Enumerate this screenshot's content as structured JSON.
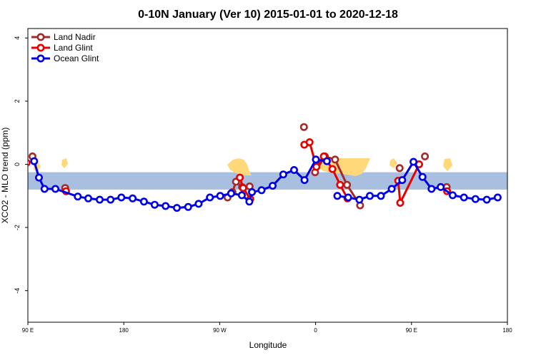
{
  "colors": {
    "land_nadir": "#a52a2a",
    "land_glint": "#e60000",
    "ocean_glint": "#0000e6",
    "band": "#a9bfe0",
    "land_fill": "#ffd87a"
  },
  "chart_data": {
    "type": "line",
    "title": "0-10N January (Ver 10)   2015-01-01 to 2020-12-18",
    "xlabel": "Longitude",
    "ylabel": "XCO2 - MLO trend (ppm)",
    "xlim": [
      90,
      540
    ],
    "ylim": [
      -5,
      4.3
    ],
    "x_ticks": [
      {
        "value": 90,
        "label": "90 E"
      },
      {
        "value": 180,
        "label": "180"
      },
      {
        "value": 270,
        "label": "90 W"
      },
      {
        "value": 360,
        "label": "0"
      },
      {
        "value": 450,
        "label": "90 E"
      },
      {
        "value": 540,
        "label": "180"
      }
    ],
    "y_ticks": [
      -4,
      -2,
      0,
      2,
      4
    ],
    "band": {
      "y_min": -0.8,
      "y_max": -0.25
    },
    "legend": {
      "position": "top-left",
      "entries": [
        "Land Nadir",
        "Land Glint",
        "Ocean Glint"
      ]
    },
    "series": [
      {
        "name": "Land Nadir",
        "segments": [
          [
            [
              94.3,
              0.25
            ]
          ],
          [
            [
              125,
              -0.75
            ]
          ],
          [
            [
              277.4,
              -1.05
            ],
            [
              282,
              -0.88
            ],
            [
              285.3,
              -0.55
            ],
            [
              291,
              -0.72
            ],
            [
              298.1,
              -0.7
            ]
          ],
          [
            [
              349.1,
              1.18
            ]
          ],
          [
            [
              359.5,
              -0.25
            ],
            [
              368.7,
              0.25
            ],
            [
              378.3,
              0.15
            ],
            [
              389.5,
              -0.65
            ],
            [
              401.8,
              -1.3
            ]
          ],
          [
            [
              438.9,
              -0.12
            ]
          ],
          [
            [
              462.6,
              0.25
            ]
          ],
          [
            [
              483,
              -0.72
            ]
          ]
        ]
      },
      {
        "name": "Land Glint",
        "segments": [
          [
            [
              88.8,
              0.05
            ]
          ],
          [
            [
              125.8,
              -0.85
            ]
          ],
          [
            [
              288.9,
              -0.42
            ],
            [
              292,
              -0.75
            ],
            [
              298.7,
              -1.1
            ]
          ],
          [
            [
              349.4,
              0.62
            ],
            [
              354.4,
              0.7
            ],
            [
              360.8,
              -0.08
            ],
            [
              367.7,
              0.25
            ],
            [
              375.8,
              -0.15
            ],
            [
              383,
              -0.65
            ],
            [
              389.9,
              -1.08
            ]
          ],
          [
            [
              437.5,
              -0.52
            ],
            [
              439.4,
              -1.22
            ],
            [
              457.2,
              0
            ]
          ],
          [
            [
              483.4,
              -0.85
            ]
          ]
        ]
      },
      {
        "name": "Ocean Glint",
        "segments": [
          [
            [
              95.9,
              0.1
            ],
            [
              100.4,
              -0.42
            ],
            [
              105.6,
              -0.78
            ],
            [
              115.8,
              -0.78
            ],
            [
              136.8,
              -1.02
            ],
            [
              146.7,
              -1.08
            ],
            [
              157.4,
              -1.12
            ],
            [
              167.6,
              -1.12
            ],
            [
              177.7,
              -1.05
            ],
            [
              188.3,
              -1.08
            ],
            [
              198.9,
              -1.18
            ],
            [
              209,
              -1.28
            ],
            [
              219.2,
              -1.32
            ],
            [
              229.8,
              -1.38
            ],
            [
              240.4,
              -1.35
            ],
            [
              250.2,
              -1.25
            ],
            [
              260.8,
              -1.05
            ],
            [
              270.5,
              -1.0
            ],
            [
              280.7,
              -0.92
            ],
            [
              290.8,
              -0.98
            ],
            [
              297.8,
              -1.18
            ],
            [
              300.3,
              -0.88
            ],
            [
              309.3,
              -0.82
            ],
            [
              319.7,
              -0.68
            ],
            [
              329.7,
              -0.32
            ],
            [
              339.8,
              -0.18
            ],
            [
              349.6,
              -0.5
            ],
            [
              360.3,
              0.15
            ],
            [
              370.6,
              0.1
            ]
          ],
          [
            [
              380.4,
              -1.0
            ],
            [
              390.6,
              -1.05
            ],
            [
              401.1,
              -1.12
            ],
            [
              410.9,
              -1.0
            ],
            [
              421.3,
              -1.0
            ],
            [
              431.4,
              -0.78
            ],
            [
              441.3,
              -0.5
            ],
            [
              451.9,
              0.08
            ],
            [
              460.3,
              -0.4
            ],
            [
              468.8,
              -0.78
            ],
            [
              477.4,
              -0.72
            ],
            [
              488.6,
              -0.98
            ],
            [
              499.2,
              -1.05
            ],
            [
              510,
              -1.1
            ],
            [
              520.6,
              -1.12
            ],
            [
              530.9,
              -1.05
            ]
          ]
        ]
      }
    ]
  }
}
